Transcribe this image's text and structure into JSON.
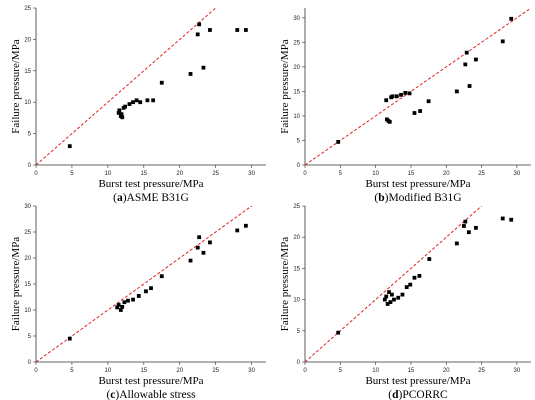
{
  "colors": {
    "reference_line": "#e02020",
    "marker": "#000000",
    "axis": "#333333"
  },
  "chart_data": [
    {
      "type": "scatter",
      "panel_letter": "a",
      "caption": "ASME B31G",
      "xlabel": "Burst test pressure/MPa",
      "ylabel": "Failure pressure/MPa",
      "xlim": [
        0,
        32
      ],
      "ylim": [
        0,
        25
      ],
      "xticks": [
        0,
        5,
        10,
        15,
        20,
        25,
        30
      ],
      "yticks": [
        0,
        5,
        10,
        15,
        20,
        25
      ],
      "reference_line": "y = x (red dashed)",
      "points": [
        [
          4.7,
          3.0
        ],
        [
          11.5,
          8.3
        ],
        [
          11.6,
          8.7
        ],
        [
          11.8,
          7.8
        ],
        [
          11.9,
          8.1
        ],
        [
          12.0,
          7.6
        ],
        [
          12.2,
          9.1
        ],
        [
          12.4,
          9.3
        ],
        [
          13.0,
          9.7
        ],
        [
          13.5,
          10.0
        ],
        [
          14.0,
          10.3
        ],
        [
          14.5,
          10.0
        ],
        [
          15.5,
          10.3
        ],
        [
          16.3,
          10.3
        ],
        [
          17.5,
          13.1
        ],
        [
          21.5,
          14.5
        ],
        [
          22.5,
          20.8
        ],
        [
          22.7,
          22.4
        ],
        [
          23.3,
          15.5
        ],
        [
          24.2,
          21.5
        ],
        [
          28.0,
          21.5
        ],
        [
          29.2,
          21.5
        ]
      ]
    },
    {
      "type": "scatter",
      "panel_letter": "b",
      "caption": "Modified B31G",
      "xlabel": "Burst test pressure/MPa",
      "ylabel": "Failure pressure/MPa",
      "xlim": [
        0,
        32
      ],
      "ylim": [
        0,
        32
      ],
      "xticks": [
        0,
        5,
        10,
        15,
        20,
        25,
        30
      ],
      "yticks": [
        0,
        5,
        10,
        15,
        20,
        25,
        30
      ],
      "reference_line": "y = x (red dashed)",
      "points": [
        [
          4.7,
          4.7
        ],
        [
          11.5,
          13.2
        ],
        [
          11.6,
          9.3
        ],
        [
          11.8,
          9.0
        ],
        [
          12.0,
          8.8
        ],
        [
          12.2,
          13.8
        ],
        [
          12.4,
          14.0
        ],
        [
          13.0,
          14.0
        ],
        [
          13.6,
          14.3
        ],
        [
          14.2,
          14.7
        ],
        [
          14.8,
          14.6
        ],
        [
          15.5,
          10.6
        ],
        [
          16.3,
          11.0
        ],
        [
          17.5,
          13.0
        ],
        [
          21.5,
          15.0
        ],
        [
          22.7,
          20.5
        ],
        [
          22.9,
          22.9
        ],
        [
          23.3,
          16.1
        ],
        [
          24.2,
          21.5
        ],
        [
          28.0,
          25.2
        ],
        [
          29.2,
          29.8
        ]
      ]
    },
    {
      "type": "scatter",
      "panel_letter": "c",
      "caption": "Allowable stress",
      "xlabel": "Burst test pressure/MPa",
      "ylabel": "Failure pressure/MPa",
      "xlim": [
        0,
        32
      ],
      "ylim": [
        0,
        30
      ],
      "xticks": [
        0,
        5,
        10,
        15,
        20,
        25,
        30
      ],
      "yticks": [
        0,
        5,
        10,
        15,
        20,
        25,
        30
      ],
      "reference_line": "y = x (red dashed)",
      "points": [
        [
          4.7,
          4.5
        ],
        [
          11.3,
          10.5
        ],
        [
          11.5,
          11.0
        ],
        [
          11.8,
          10.0
        ],
        [
          12.0,
          10.6
        ],
        [
          12.3,
          11.5
        ],
        [
          12.8,
          11.8
        ],
        [
          13.5,
          12.0
        ],
        [
          14.3,
          12.7
        ],
        [
          15.3,
          13.6
        ],
        [
          16.0,
          14.2
        ],
        [
          17.5,
          16.5
        ],
        [
          21.5,
          19.5
        ],
        [
          22.5,
          22.0
        ],
        [
          22.7,
          24.0
        ],
        [
          23.3,
          21.0
        ],
        [
          24.2,
          23.0
        ],
        [
          28.0,
          25.3
        ],
        [
          29.2,
          26.2
        ]
      ]
    },
    {
      "type": "scatter",
      "panel_letter": "d",
      "caption": "PCORRC",
      "xlabel": "Burst test pressure/MPa",
      "ylabel": "Failure pressure/MPa",
      "xlim": [
        0,
        32
      ],
      "ylim": [
        0,
        25
      ],
      "xticks": [
        0,
        5,
        10,
        15,
        20,
        25,
        30
      ],
      "yticks": [
        0,
        5,
        10,
        15,
        20,
        25
      ],
      "reference_line": "y = x (red dashed)",
      "points": [
        [
          4.7,
          4.7
        ],
        [
          11.3,
          10.0
        ],
        [
          11.5,
          10.5
        ],
        [
          11.7,
          9.3
        ],
        [
          11.9,
          11.2
        ],
        [
          12.1,
          9.6
        ],
        [
          12.3,
          10.8
        ],
        [
          12.6,
          10.0
        ],
        [
          13.2,
          10.3
        ],
        [
          13.8,
          10.8
        ],
        [
          14.4,
          12.0
        ],
        [
          14.9,
          12.4
        ],
        [
          15.5,
          13.5
        ],
        [
          16.2,
          13.8
        ],
        [
          17.6,
          16.5
        ],
        [
          21.5,
          19.0
        ],
        [
          22.5,
          21.8
        ],
        [
          22.7,
          22.5
        ],
        [
          23.2,
          20.8
        ],
        [
          24.2,
          21.5
        ],
        [
          28.0,
          23.0
        ],
        [
          29.2,
          22.8
        ]
      ]
    }
  ]
}
